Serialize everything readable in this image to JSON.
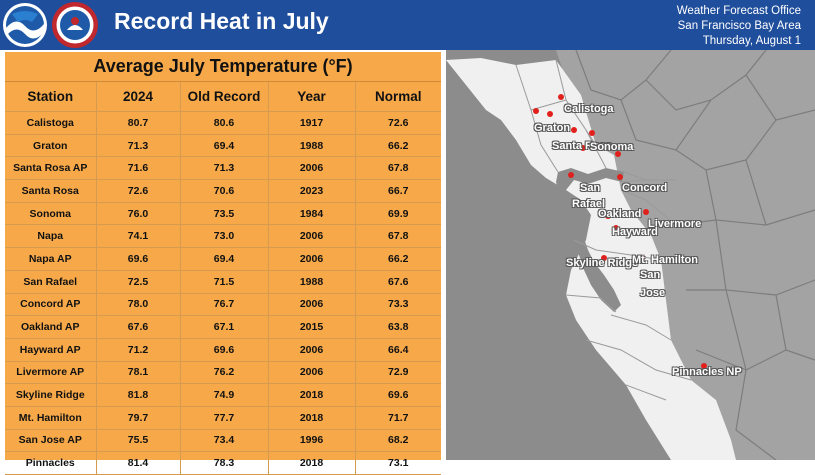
{
  "header": {
    "title": "Record Heat in July",
    "office_lines": [
      "Weather Forecast Office",
      "San Francisco Bay Area",
      "Thursday, August 1"
    ]
  },
  "table": {
    "title": "Average July Temperature (°F)",
    "columns": [
      "Station",
      "2024",
      "Old Record",
      "Year",
      "Normal"
    ],
    "rows": [
      [
        "Calistoga",
        "80.7",
        "80.6",
        "1917",
        "72.6"
      ],
      [
        "Graton",
        "71.3",
        "69.4",
        "1988",
        "66.2"
      ],
      [
        "Santa Rosa AP",
        "71.6",
        "71.3",
        "2006",
        "67.8"
      ],
      [
        "Santa Rosa",
        "72.6",
        "70.6",
        "2023",
        "66.7"
      ],
      [
        "Sonoma",
        "76.0",
        "73.5",
        "1984",
        "69.9"
      ],
      [
        "Napa",
        "74.1",
        "73.0",
        "2006",
        "67.8"
      ],
      [
        "Napa AP",
        "69.6",
        "69.4",
        "2006",
        "66.2"
      ],
      [
        "San Rafael",
        "72.5",
        "71.5",
        "1988",
        "67.6"
      ],
      [
        "Concord AP",
        "78.0",
        "76.7",
        "2006",
        "73.3"
      ],
      [
        "Oakland AP",
        "67.6",
        "67.1",
        "2015",
        "63.8"
      ],
      [
        "Hayward AP",
        "71.2",
        "69.6",
        "2006",
        "66.4"
      ],
      [
        "Livermore AP",
        "78.1",
        "76.2",
        "2006",
        "72.9"
      ],
      [
        "Skyline Ridge",
        "81.8",
        "74.9",
        "2018",
        "69.6"
      ],
      [
        "Mt. Hamilton",
        "79.7",
        "77.7",
        "2018",
        "71.7"
      ],
      [
        "San Jose AP",
        "75.5",
        "73.4",
        "1996",
        "68.2"
      ],
      [
        "Pinnacles",
        "81.4",
        "78.3",
        "2018",
        "73.1"
      ]
    ]
  },
  "map": {
    "labels": {
      "calistoga": "Calistoga",
      "graton": "Graton",
      "santa_rosa": "Santa Rosa",
      "sonoma": "Sonoma",
      "concord": "Concord",
      "san_rafael_1": "San",
      "san_rafael_2": "Rafael",
      "oakland": "Oakland",
      "livermore": "Livermore",
      "hayward": "Hayward",
      "skyline": "Skyline Ridge",
      "mt_hamilton": "Mt. Hamilton",
      "san_jose_1": "San",
      "san_jose_2": "Jose",
      "pinnacles": "Pinnacles NP"
    },
    "colors": {
      "land": "#f0f0f0",
      "ocean": "#8c8c8c",
      "marker": "#e0201c"
    }
  }
}
